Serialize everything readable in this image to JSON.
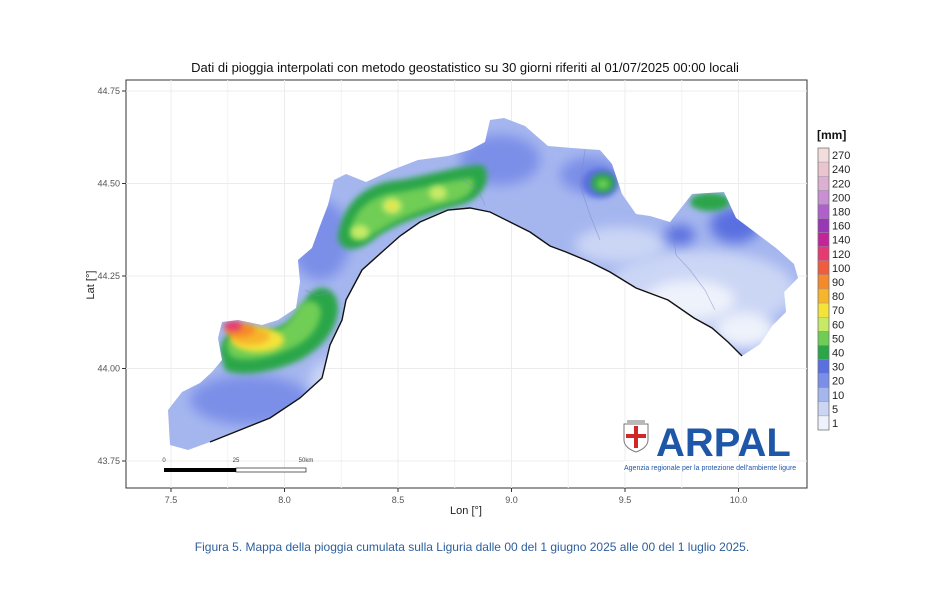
{
  "map": {
    "title": "Dati di pioggia interpolati con metodo geostatistico su 30 giorni riferiti al 01/07/2025 00:00 locali",
    "x_axis": {
      "label": "Lon [°]",
      "ticks": [
        {
          "value": 7.5,
          "label": "7.5"
        },
        {
          "value": 8.0,
          "label": "8.0"
        },
        {
          "value": 8.5,
          "label": "8.5"
        },
        {
          "value": 9.0,
          "label": "9.0"
        },
        {
          "value": 9.5,
          "label": "9.5"
        },
        {
          "value": 10.0,
          "label": "10.0"
        }
      ]
    },
    "y_axis": {
      "label": "Lat [°]",
      "ticks": [
        {
          "value": 44.75,
          "label": "44.75"
        },
        {
          "value": 44.5,
          "label": "44.50"
        },
        {
          "value": 44.25,
          "label": "44.25"
        },
        {
          "value": 44.0,
          "label": "44.00"
        },
        {
          "value": 43.75,
          "label": "43.75"
        }
      ]
    },
    "legend": {
      "title": "[mm]",
      "levels": [
        {
          "label": "270",
          "color": "#f3dcdc"
        },
        {
          "label": "240",
          "color": "#e9c5cf"
        },
        {
          "label": "220",
          "color": "#dcb0d2"
        },
        {
          "label": "200",
          "color": "#c98fd3"
        },
        {
          "label": "180",
          "color": "#b05fcc"
        },
        {
          "label": "160",
          "color": "#9a37b8"
        },
        {
          "label": "140",
          "color": "#c2259a"
        },
        {
          "label": "120",
          "color": "#e53a72"
        },
        {
          "label": "100",
          "color": "#ef5d3e"
        },
        {
          "label": "90",
          "color": "#f58a2c"
        },
        {
          "label": "80",
          "color": "#f7b52b"
        },
        {
          "label": "70",
          "color": "#f3e33b"
        },
        {
          "label": "60",
          "color": "#c6ea66"
        },
        {
          "label": "50",
          "color": "#6fcd55"
        },
        {
          "label": "40",
          "color": "#2aa648"
        },
        {
          "label": "30",
          "color": "#5a6fe0"
        },
        {
          "label": "20",
          "color": "#7b8fe8"
        },
        {
          "label": "10",
          "color": "#a5b6ef"
        },
        {
          "label": "5",
          "color": "#cbd6f5"
        },
        {
          "label": "1",
          "color": "#eef2fb"
        }
      ]
    },
    "scale_bar": {
      "labels": [
        "0",
        "25",
        "50km"
      ]
    },
    "logo": {
      "name": "ARPAL",
      "subtitle": "Agenzia regionale per la protezione dell'ambiente ligure",
      "icon": "liguria-crest-icon"
    }
  },
  "caption": "Figura 5. Mappa della pioggia cumulata sulla Liguria dalle 00 del 1 giugno 2025 alle 00 del 1 luglio 2025."
}
